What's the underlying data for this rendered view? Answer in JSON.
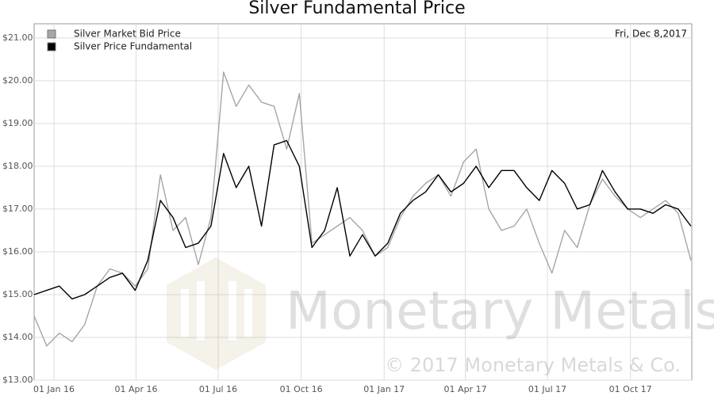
{
  "chart_data": {
    "type": "line",
    "title": "Silver Fundamental Price",
    "annotation": "Fri, Dec 8,2017",
    "watermark": "Monetary Metals",
    "copyright": "© 2017 Monetary Metals & Co.",
    "legend": "top-left",
    "grid": true,
    "x": [
      "2015-12-10",
      "2015-12-24",
      "2016-01-07",
      "2016-01-21",
      "2016-02-04",
      "2016-02-18",
      "2016-03-03",
      "2016-03-17",
      "2016-03-31",
      "2016-04-14",
      "2016-04-28",
      "2016-05-12",
      "2016-05-26",
      "2016-06-09",
      "2016-06-23",
      "2016-07-07",
      "2016-07-21",
      "2016-08-04",
      "2016-08-18",
      "2016-09-01",
      "2016-09-15",
      "2016-09-29",
      "2016-10-13",
      "2016-10-27",
      "2016-11-10",
      "2016-11-24",
      "2016-12-08",
      "2016-12-22",
      "2017-01-05",
      "2017-01-19",
      "2017-02-02",
      "2017-02-16",
      "2017-03-02",
      "2017-03-16",
      "2017-03-30",
      "2017-04-13",
      "2017-04-27",
      "2017-05-11",
      "2017-05-25",
      "2017-06-08",
      "2017-06-22",
      "2017-07-06",
      "2017-07-20",
      "2017-08-03",
      "2017-08-17",
      "2017-08-31",
      "2017-09-14",
      "2017-09-28",
      "2017-10-12",
      "2017-10-26",
      "2017-11-09",
      "2017-11-23",
      "2017-12-07"
    ],
    "series": [
      {
        "name": "Silver Market Bid Price",
        "color": "#a6a6a6",
        "values": [
          14.5,
          13.8,
          14.1,
          13.9,
          14.3,
          15.2,
          15.6,
          15.5,
          15.2,
          15.6,
          17.8,
          16.5,
          16.8,
          15.7,
          16.8,
          20.2,
          19.4,
          19.9,
          19.5,
          19.4,
          18.4,
          19.7,
          16.2,
          16.4,
          16.6,
          16.8,
          16.5,
          15.9,
          16.1,
          16.8,
          17.3,
          17.6,
          17.8,
          17.3,
          18.1,
          18.4,
          17.0,
          16.5,
          16.6,
          17.0,
          16.2,
          15.5,
          16.5,
          16.1,
          17.1,
          17.7,
          17.3,
          17.0,
          16.8,
          17.0,
          17.2,
          16.9,
          15.8
        ]
      },
      {
        "name": "Silver Price Fundamental",
        "color": "#000000",
        "values": [
          15.0,
          15.1,
          15.2,
          14.9,
          15.0,
          15.2,
          15.4,
          15.5,
          15.1,
          15.8,
          17.2,
          16.8,
          16.1,
          16.2,
          16.6,
          18.3,
          17.5,
          18.0,
          16.6,
          18.5,
          18.6,
          18.0,
          16.1,
          16.5,
          17.5,
          15.9,
          16.4,
          15.9,
          16.2,
          16.9,
          17.2,
          17.4,
          17.8,
          17.4,
          17.6,
          18.0,
          17.5,
          17.9,
          17.9,
          17.5,
          17.2,
          17.9,
          17.6,
          17.0,
          17.1,
          17.9,
          17.4,
          17.0,
          17.0,
          16.9,
          17.1,
          17.0,
          16.6
        ]
      }
    ],
    "xlim": [
      "2015-12-10",
      "2017-12-08"
    ],
    "xticks": [
      {
        "value": "2016-01-01",
        "label": "01 Jan 16"
      },
      {
        "value": "2016-04-01",
        "label": "01 Apr 16"
      },
      {
        "value": "2016-07-01",
        "label": "01 Jul 16"
      },
      {
        "value": "2016-10-01",
        "label": "01 Oct 16"
      },
      {
        "value": "2017-01-01",
        "label": "01 Jan 17"
      },
      {
        "value": "2017-04-01",
        "label": "01 Apr 17"
      },
      {
        "value": "2017-07-01",
        "label": "01 Jul 17"
      },
      {
        "value": "2017-10-01",
        "label": "01 Oct 17"
      }
    ],
    "ylim": [
      13,
      21.33
    ],
    "yticks": [
      {
        "value": 13,
        "label": "$13.00"
      },
      {
        "value": 14,
        "label": "$14.00"
      },
      {
        "value": 15,
        "label": "$15.00"
      },
      {
        "value": 16,
        "label": "$16.00"
      },
      {
        "value": 17,
        "label": "$17.00"
      },
      {
        "value": 18,
        "label": "$18.00"
      },
      {
        "value": 19,
        "label": "$19.00"
      },
      {
        "value": 20,
        "label": "$20.00"
      },
      {
        "value": 21,
        "label": "$21.00"
      }
    ]
  }
}
